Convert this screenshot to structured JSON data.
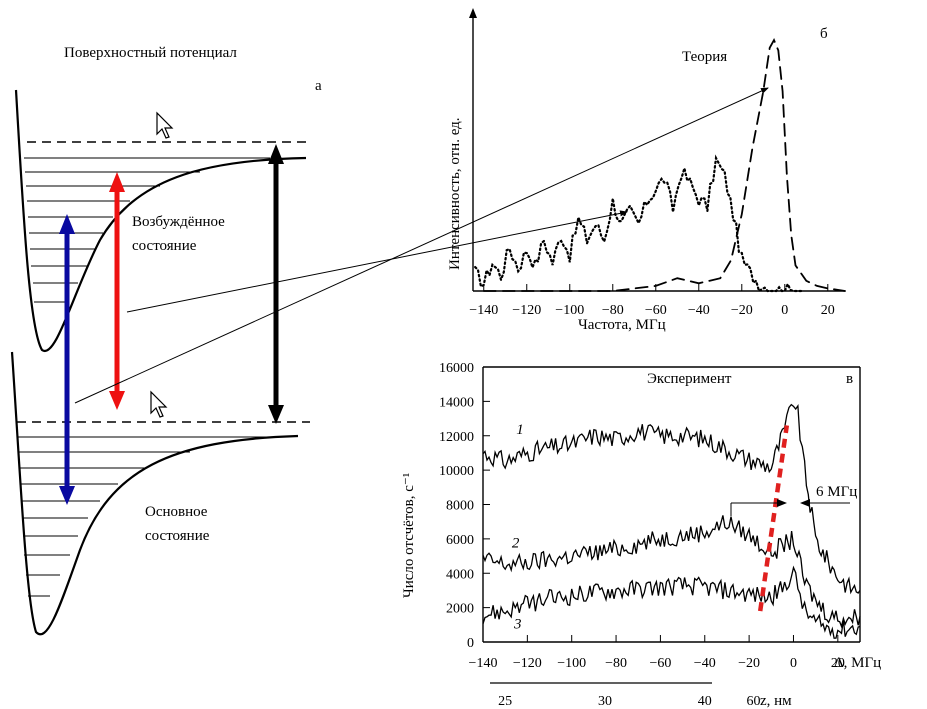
{
  "panel_a": {
    "title": "Поверхностный потенциал",
    "letter": "а",
    "excited_label_line1": "Возбуждённое",
    "excited_label_line2": "состояние",
    "ground_label_line1": "Основное",
    "ground_label_line2": "состояние",
    "colors": {
      "blue_arrow": "#0a0aa0",
      "red_arrow": "#ee1111",
      "black_arrow": "#000000"
    },
    "icons": [
      "cursor-arrow-icon",
      "cursor-arrow-icon"
    ]
  },
  "chart_data": [
    {
      "type": "line",
      "panel": "б",
      "letter": "б",
      "annotation": "Теория",
      "xlabel": "Частота, МГц",
      "ylabel": "Интенсивность, отн. ед.",
      "xlim": [
        -145,
        28
      ],
      "ylim": [
        0,
        1.0
      ],
      "x_ticks": [
        -140,
        -120,
        -100,
        -80,
        -60,
        -40,
        -20,
        0,
        20
      ],
      "x_tick_labels": [
        "−140",
        "−120",
        "−100",
        "−80",
        "−60",
        "−40",
        "−20",
        "0",
        "20"
      ],
      "grid": false,
      "series": [
        {
          "style": "dashed",
          "x": [
            -140,
            -120,
            -100,
            -80,
            -60,
            -50,
            -40,
            -30,
            -25,
            -20,
            -15,
            -10,
            -7,
            -5,
            -3,
            -1,
            1,
            3,
            5,
            10,
            15,
            20,
            28
          ],
          "y": [
            0.0,
            0.0,
            0.0,
            0.0,
            0.02,
            0.05,
            0.03,
            0.05,
            0.12,
            0.3,
            0.56,
            0.78,
            0.95,
            0.98,
            0.94,
            0.78,
            0.45,
            0.22,
            0.1,
            0.04,
            0.02,
            0.01,
            0.0
          ]
        },
        {
          "style": "dotted",
          "x": [
            -144,
            -140,
            -136,
            -132,
            -128,
            -124,
            -120,
            -116,
            -112,
            -108,
            -104,
            -100,
            -96,
            -92,
            -88,
            -84,
            -80,
            -76,
            -72,
            -68,
            -64,
            -60,
            -56,
            -52,
            -48,
            -44,
            -40,
            -36,
            -32,
            -28,
            -24,
            -20,
            -16,
            -12,
            -8,
            -4,
            0,
            4,
            8
          ],
          "y": [
            0.07,
            0.03,
            0.11,
            0.06,
            0.17,
            0.09,
            0.16,
            0.1,
            0.2,
            0.11,
            0.22,
            0.14,
            0.28,
            0.2,
            0.26,
            0.2,
            0.35,
            0.26,
            0.31,
            0.26,
            0.35,
            0.4,
            0.44,
            0.32,
            0.47,
            0.42,
            0.36,
            0.33,
            0.51,
            0.45,
            0.3,
            0.12,
            0.07,
            0.03,
            0.01,
            0.0,
            0.0,
            0.0,
            0.0
          ]
        }
      ]
    },
    {
      "type": "line",
      "panel": "в",
      "letter": "в",
      "annotation": "Эксперимент",
      "ylabel": "Число отсчётов, с⁻¹",
      "xlabel": "Δ, МГц",
      "xlim": [
        -140,
        30
      ],
      "ylim": [
        0,
        16000
      ],
      "x_ticks": [
        -140,
        -120,
        -100,
        -80,
        -60,
        -40,
        -20,
        0,
        20
      ],
      "x_tick_labels": [
        "−140",
        "−120",
        "−100",
        "−80",
        "−60",
        "−40",
        "−20",
        "0",
        "20"
      ],
      "y_ticks": [
        0,
        2000,
        4000,
        6000,
        8000,
        10000,
        12000,
        14000,
        16000
      ],
      "y_tick_labels": [
        "0",
        "2000",
        "4000",
        "6000",
        "8000",
        "10000",
        "12000",
        "14000",
        "16000"
      ],
      "secondary_axis": {
        "label": "z, нм",
        "ticks": [
          {
            "value": "25",
            "at_mhz": -130
          },
          {
            "value": "30",
            "at_mhz": -85
          },
          {
            "value": "40",
            "at_mhz": -40
          },
          {
            "value": "60",
            "at_mhz": -18
          }
        ]
      },
      "width_annotation": "6 МГц",
      "grid": false,
      "series": [
        {
          "name": "1",
          "x": [
            -140,
            -130,
            -120,
            -110,
            -100,
            -90,
            -80,
            -70,
            -60,
            -50,
            -40,
            -30,
            -20,
            -10,
            -5,
            -2,
            0,
            2,
            5,
            10,
            15,
            20,
            25,
            30
          ],
          "y": [
            11000,
            10500,
            11000,
            11300,
            11500,
            12000,
            11800,
            12300,
            12000,
            12000,
            11800,
            11200,
            10600,
            10200,
            12000,
            13200,
            14100,
            13200,
            10000,
            6000,
            4800,
            3800,
            3200,
            3000
          ]
        },
        {
          "name": "2",
          "x": [
            -140,
            -130,
            -120,
            -110,
            -100,
            -90,
            -80,
            -70,
            -60,
            -50,
            -40,
            -30,
            -20,
            -10,
            -5,
            0,
            5,
            10,
            15,
            20,
            25,
            30
          ],
          "y": [
            4800,
            4500,
            4600,
            4800,
            5000,
            5200,
            5400,
            5700,
            6000,
            6200,
            6400,
            7000,
            6200,
            5200,
            5600,
            6000,
            3500,
            2400,
            1700,
            1400,
            1400,
            1500
          ]
        },
        {
          "name": "3",
          "x": [
            -140,
            -130,
            -120,
            -110,
            -100,
            -90,
            -80,
            -70,
            -60,
            -50,
            -40,
            -30,
            -20,
            -10,
            -5,
            -2,
            0,
            3,
            5,
            10,
            15,
            20,
            25,
            30
          ],
          "y": [
            1600,
            1800,
            2200,
            2500,
            2700,
            2900,
            3000,
            3100,
            3200,
            3300,
            3200,
            3000,
            2800,
            2600,
            3100,
            3700,
            4000,
            2800,
            1800,
            1100,
            800,
            700,
            800,
            900
          ]
        }
      ],
      "red_dashed_line": {
        "color": "#e0201f",
        "x": [
          -15,
          -3
        ],
        "y": [
          1800,
          12600
        ]
      }
    }
  ]
}
